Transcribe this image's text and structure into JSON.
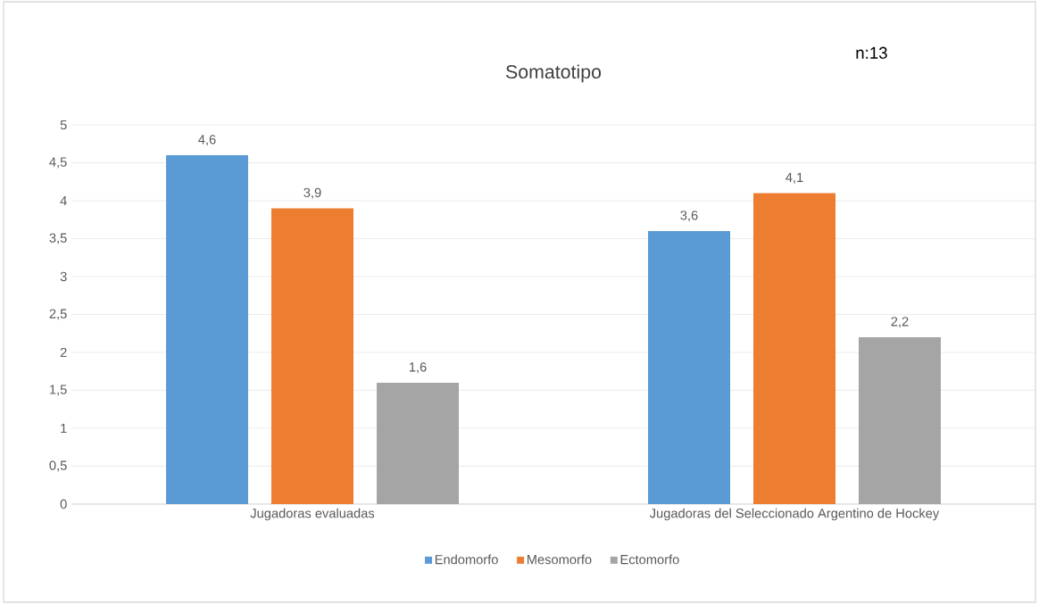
{
  "chart_data": {
    "type": "bar",
    "title": "Somatotipo",
    "annotations": [
      "n:13"
    ],
    "categories": [
      "Jugadoras evaluadas",
      "Jugadoras del Seleccionado Argentino de Hockey"
    ],
    "series": [
      {
        "name": "Endomorfo",
        "color": "#5b9bd5",
        "values": [
          4.6,
          3.6
        ],
        "value_labels": [
          "4,6",
          "3,6"
        ]
      },
      {
        "name": "Mesomorfo",
        "color": "#ed7d31",
        "values": [
          3.9,
          4.1
        ],
        "value_labels": [
          "3,9",
          "4,1"
        ]
      },
      {
        "name": "Ectomorfo",
        "color": "#a5a5a5",
        "values": [
          1.6,
          2.2
        ],
        "value_labels": [
          "1,6",
          "2,2"
        ]
      }
    ],
    "ylim": [
      0,
      5
    ],
    "yticks": [
      0,
      {
        "value": 0.5,
        "label": "0,5"
      },
      1,
      {
        "value": 1.5,
        "label": "1,5"
      },
      2,
      {
        "value": 2.5,
        "label": "2,5"
      },
      3,
      {
        "value": 3.5,
        "label": "3,5"
      },
      4,
      {
        "value": 4.5,
        "label": "4,5"
      },
      5
    ],
    "grid": "y",
    "legend": "bottom"
  }
}
